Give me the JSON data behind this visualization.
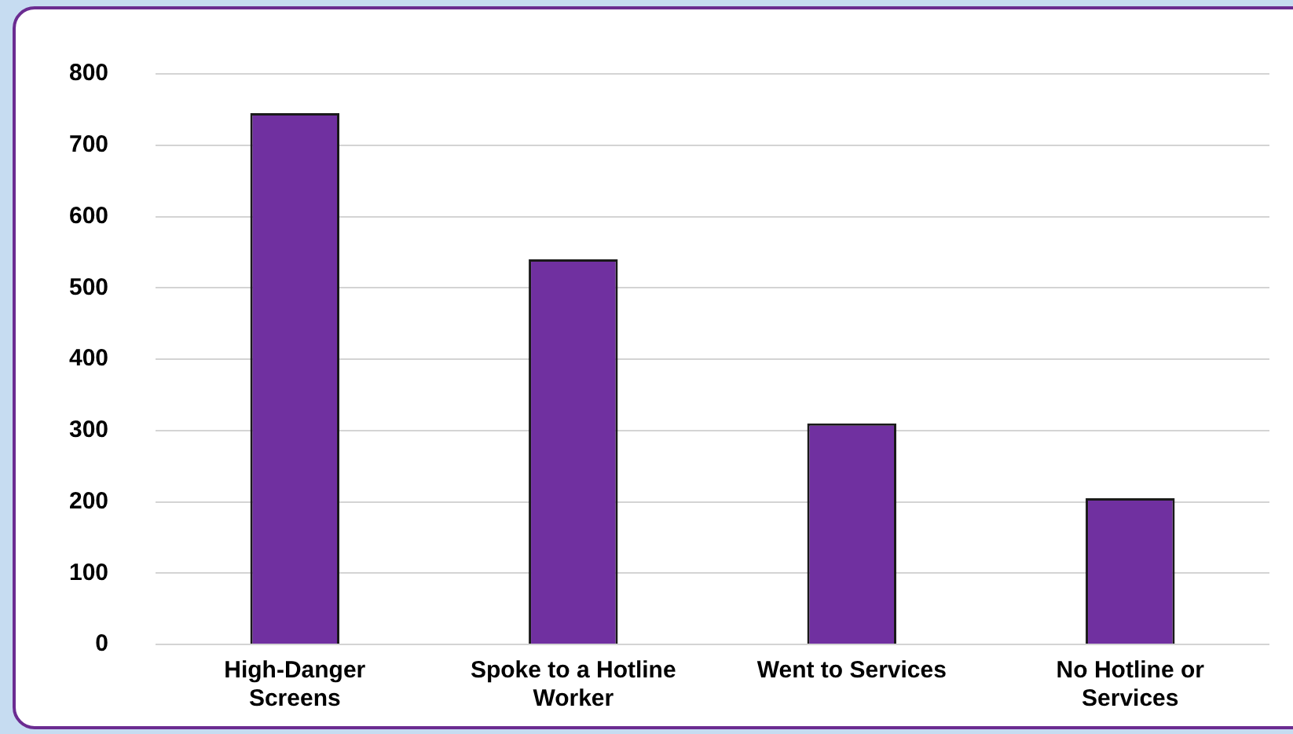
{
  "chart_data": {
    "type": "bar",
    "categories": [
      "High-Danger Screens",
      "Spoke to a Hotline Worker",
      "Went to Services",
      "No Hotline or Services"
    ],
    "values": [
      745,
      540,
      310,
      205
    ],
    "color": "#7030a0",
    "ylim": [
      0,
      800
    ],
    "yticks": [
      0,
      100,
      200,
      300,
      400,
      500,
      600,
      700,
      800
    ],
    "grid": "y"
  }
}
